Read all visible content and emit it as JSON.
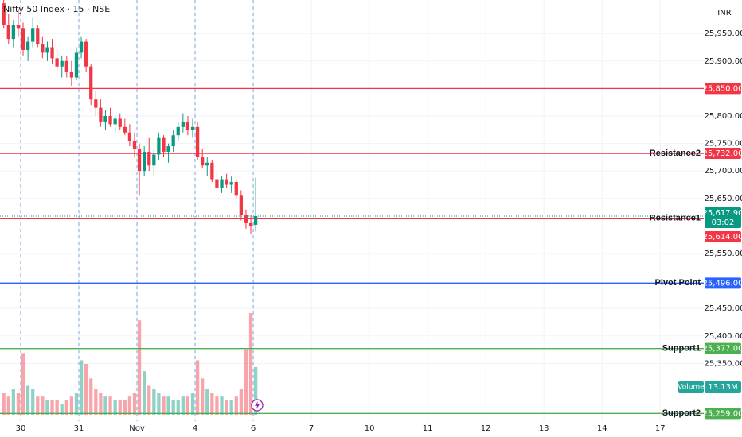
{
  "chart_data": {
    "type": "candlestick",
    "title": "Nifty 50 Index · 15 · NSE",
    "currency": "INR",
    "up_color": "#089981",
    "down_color": "#f23645",
    "candles": {
      "open": [
        26005,
        25965,
        25940,
        25965,
        25960,
        25920,
        25935,
        25960,
        25930,
        25915,
        25925,
        25905,
        25890,
        25900,
        25880,
        25870,
        25915,
        25935,
        25890,
        25830,
        25815,
        25790,
        25800,
        25785,
        25795,
        25780,
        25770,
        25755,
        25740,
        25700,
        25735,
        25710,
        25730,
        25760,
        25735,
        25745,
        25765,
        25780,
        25790,
        25775,
        25780,
        25725,
        25710,
        25715,
        25685,
        25670,
        25685,
        25675,
        25680,
        25655,
        25620,
        25605,
        25602
      ],
      "high": [
        26011,
        25985,
        25975,
        25995,
        25970,
        25945,
        25978,
        25965,
        25945,
        25935,
        25940,
        25920,
        25910,
        25910,
        25900,
        25925,
        25945,
        25940,
        25895,
        25845,
        25830,
        25810,
        25815,
        25800,
        25805,
        25795,
        25785,
        25770,
        25750,
        25745,
        25760,
        25740,
        25770,
        25765,
        25750,
        25775,
        25790,
        25805,
        25800,
        25795,
        25790,
        25740,
        25725,
        25720,
        25700,
        25690,
        25695,
        25690,
        25685,
        25665,
        25630,
        25620,
        25688
      ],
      "low": [
        25960,
        25930,
        25925,
        25945,
        25910,
        25900,
        25925,
        25925,
        25905,
        25900,
        25895,
        25880,
        25870,
        25870,
        25855,
        25865,
        25905,
        25880,
        25820,
        25800,
        25780,
        25775,
        25780,
        25770,
        25775,
        25765,
        25745,
        25725,
        25655,
        25690,
        25700,
        25690,
        25720,
        25725,
        25715,
        25735,
        25755,
        25770,
        25765,
        25760,
        25720,
        25705,
        25690,
        25680,
        25665,
        25660,
        25670,
        25660,
        25650,
        25610,
        25595,
        25585,
        25590
      ],
      "close": [
        25965,
        25940,
        25965,
        25960,
        25920,
        25935,
        25960,
        25930,
        25915,
        25925,
        25905,
        25890,
        25900,
        25880,
        25870,
        25915,
        25935,
        25890,
        25830,
        25815,
        25790,
        25800,
        25785,
        25795,
        25780,
        25770,
        25755,
        25740,
        25700,
        25735,
        25710,
        25730,
        25760,
        25735,
        25745,
        25765,
        25780,
        25790,
        25775,
        25780,
        25725,
        25710,
        25715,
        25685,
        25670,
        25685,
        25675,
        25680,
        25655,
        25620,
        25605,
        25600,
        25617.9
      ]
    },
    "volume": {
      "name": "Volume",
      "values": [
        6,
        5,
        7,
        6,
        17,
        8,
        7,
        5,
        5,
        4,
        4,
        4,
        3,
        4,
        5,
        6,
        15,
        14,
        10,
        7,
        6,
        5,
        5,
        4,
        4,
        4,
        5,
        6,
        26,
        12,
        8,
        7,
        6,
        5,
        5,
        4,
        4,
        5,
        5,
        6,
        15,
        10,
        7,
        6,
        5,
        5,
        4,
        4,
        5,
        7,
        18,
        28,
        13.13
      ],
      "value_label": "13.13M"
    },
    "last_price": {
      "value": 25617.9,
      "label": "25,617.90",
      "countdown": "03:02"
    },
    "levels": [
      {
        "value": 25850,
        "label": "25,850.00",
        "color": "#f23645"
      },
      {
        "name": "Resistance2",
        "value": 25732,
        "label": "25,732.00",
        "color": "#f23645"
      },
      {
        "name": "Resistance1",
        "value": 25614,
        "label": "25,614.00",
        "color": "#f23645"
      },
      {
        "name": "Pivot Point",
        "value": 25496,
        "label": "25,496.00",
        "color": "#2962ff"
      },
      {
        "name": "Support1",
        "value": 25377,
        "label": "25,377.00",
        "color": "#4caf50"
      },
      {
        "name": "Support2",
        "value": 25259,
        "label": "25,259.00",
        "color": "#4caf50"
      }
    ],
    "ylim": [
      25245,
      26011
    ],
    "yticks": [
      {
        "value": 25950,
        "label": "25,950.00"
      },
      {
        "value": 25900,
        "label": "25,900.00"
      },
      {
        "value": 25800,
        "label": "25,800.00"
      },
      {
        "value": 25750,
        "label": "25,750.00"
      },
      {
        "value": 25700,
        "label": "25,700.00"
      },
      {
        "value": 25650,
        "label": "25,650.00"
      },
      {
        "value": 25550,
        "label": "25,550.00"
      },
      {
        "value": 25450,
        "label": "25,450.00"
      },
      {
        "value": 25400,
        "label": "25,400.00"
      },
      {
        "value": 25350,
        "label": "25,350.00"
      }
    ],
    "xlim": [
      -0.27,
      145
    ],
    "xticks": [
      {
        "value": 4,
        "label": "30"
      },
      {
        "value": 16,
        "label": "31"
      },
      {
        "value": 28,
        "label": "Nov"
      },
      {
        "value": 40,
        "label": "4"
      },
      {
        "value": 52,
        "label": "6"
      },
      {
        "value": 64,
        "label": "7"
      },
      {
        "value": 76,
        "label": "10"
      },
      {
        "value": 88,
        "label": "11"
      },
      {
        "value": 100,
        "label": "12"
      },
      {
        "value": 112,
        "label": "13"
      },
      {
        "value": 124,
        "label": "14"
      },
      {
        "value": 136,
        "label": "17"
      }
    ],
    "grid": true
  }
}
